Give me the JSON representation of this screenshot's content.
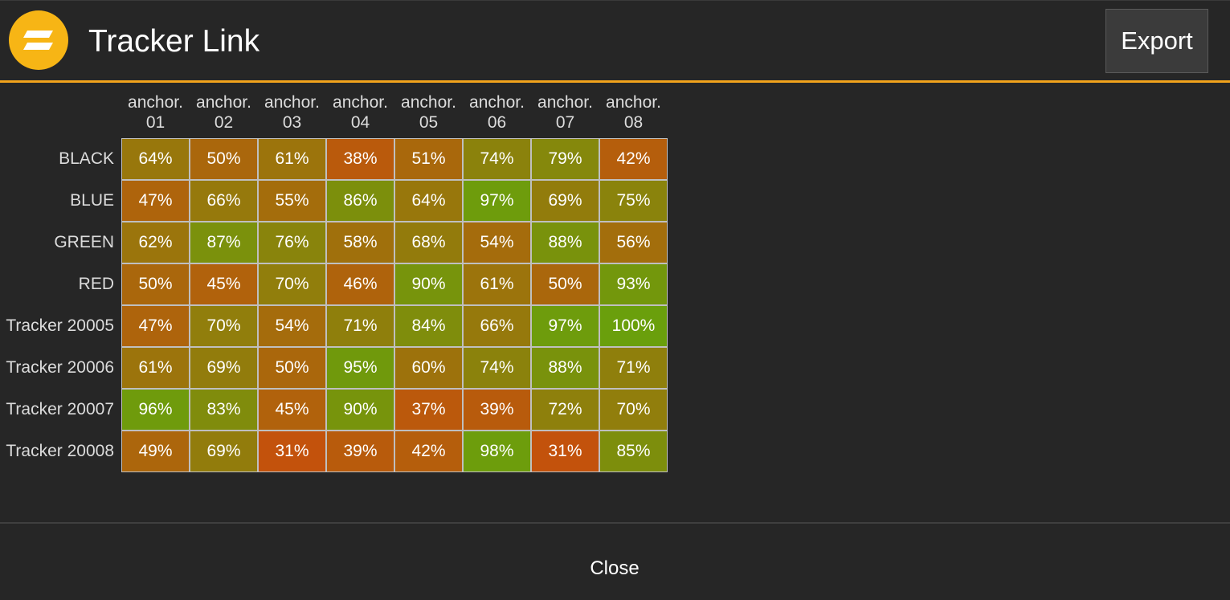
{
  "header": {
    "title": "Tracker Link",
    "export_label": "Export",
    "logo_icon": "app-logo-icon",
    "logo_color": "#f7b515",
    "accent_color": "#f2a31c"
  },
  "table": {
    "columns": [
      {
        "line1": "anchor.",
        "line2": "01"
      },
      {
        "line1": "anchor.",
        "line2": "02"
      },
      {
        "line1": "anchor.",
        "line2": "03"
      },
      {
        "line1": "anchor.",
        "line2": "04"
      },
      {
        "line1": "anchor.",
        "line2": "05"
      },
      {
        "line1": "anchor.",
        "line2": "06"
      },
      {
        "line1": "anchor.",
        "line2": "07"
      },
      {
        "line1": "anchor.",
        "line2": "08"
      }
    ],
    "rows": [
      {
        "label": "BLACK",
        "values": [
          64,
          50,
          61,
          38,
          51,
          74,
          79,
          42
        ]
      },
      {
        "label": "BLUE",
        "values": [
          47,
          66,
          55,
          86,
          64,
          97,
          69,
          75
        ]
      },
      {
        "label": "GREEN",
        "values": [
          62,
          87,
          76,
          58,
          68,
          54,
          88,
          56
        ]
      },
      {
        "label": "RED",
        "values": [
          50,
          45,
          70,
          46,
          90,
          61,
          50,
          93
        ]
      },
      {
        "label": "Tracker 20005",
        "values": [
          47,
          70,
          54,
          71,
          84,
          66,
          97,
          100
        ]
      },
      {
        "label": "Tracker 20006",
        "values": [
          61,
          69,
          50,
          95,
          60,
          74,
          88,
          71
        ]
      },
      {
        "label": "Tracker 20007",
        "values": [
          96,
          83,
          45,
          90,
          37,
          39,
          72,
          70
        ]
      },
      {
        "label": "Tracker 20008",
        "values": [
          49,
          69,
          31,
          39,
          42,
          98,
          31,
          85
        ]
      }
    ],
    "value_suffix": "%",
    "low_color": "#c4510c",
    "high_color": "#6a9f0c"
  },
  "footer": {
    "close_label": "Close"
  }
}
